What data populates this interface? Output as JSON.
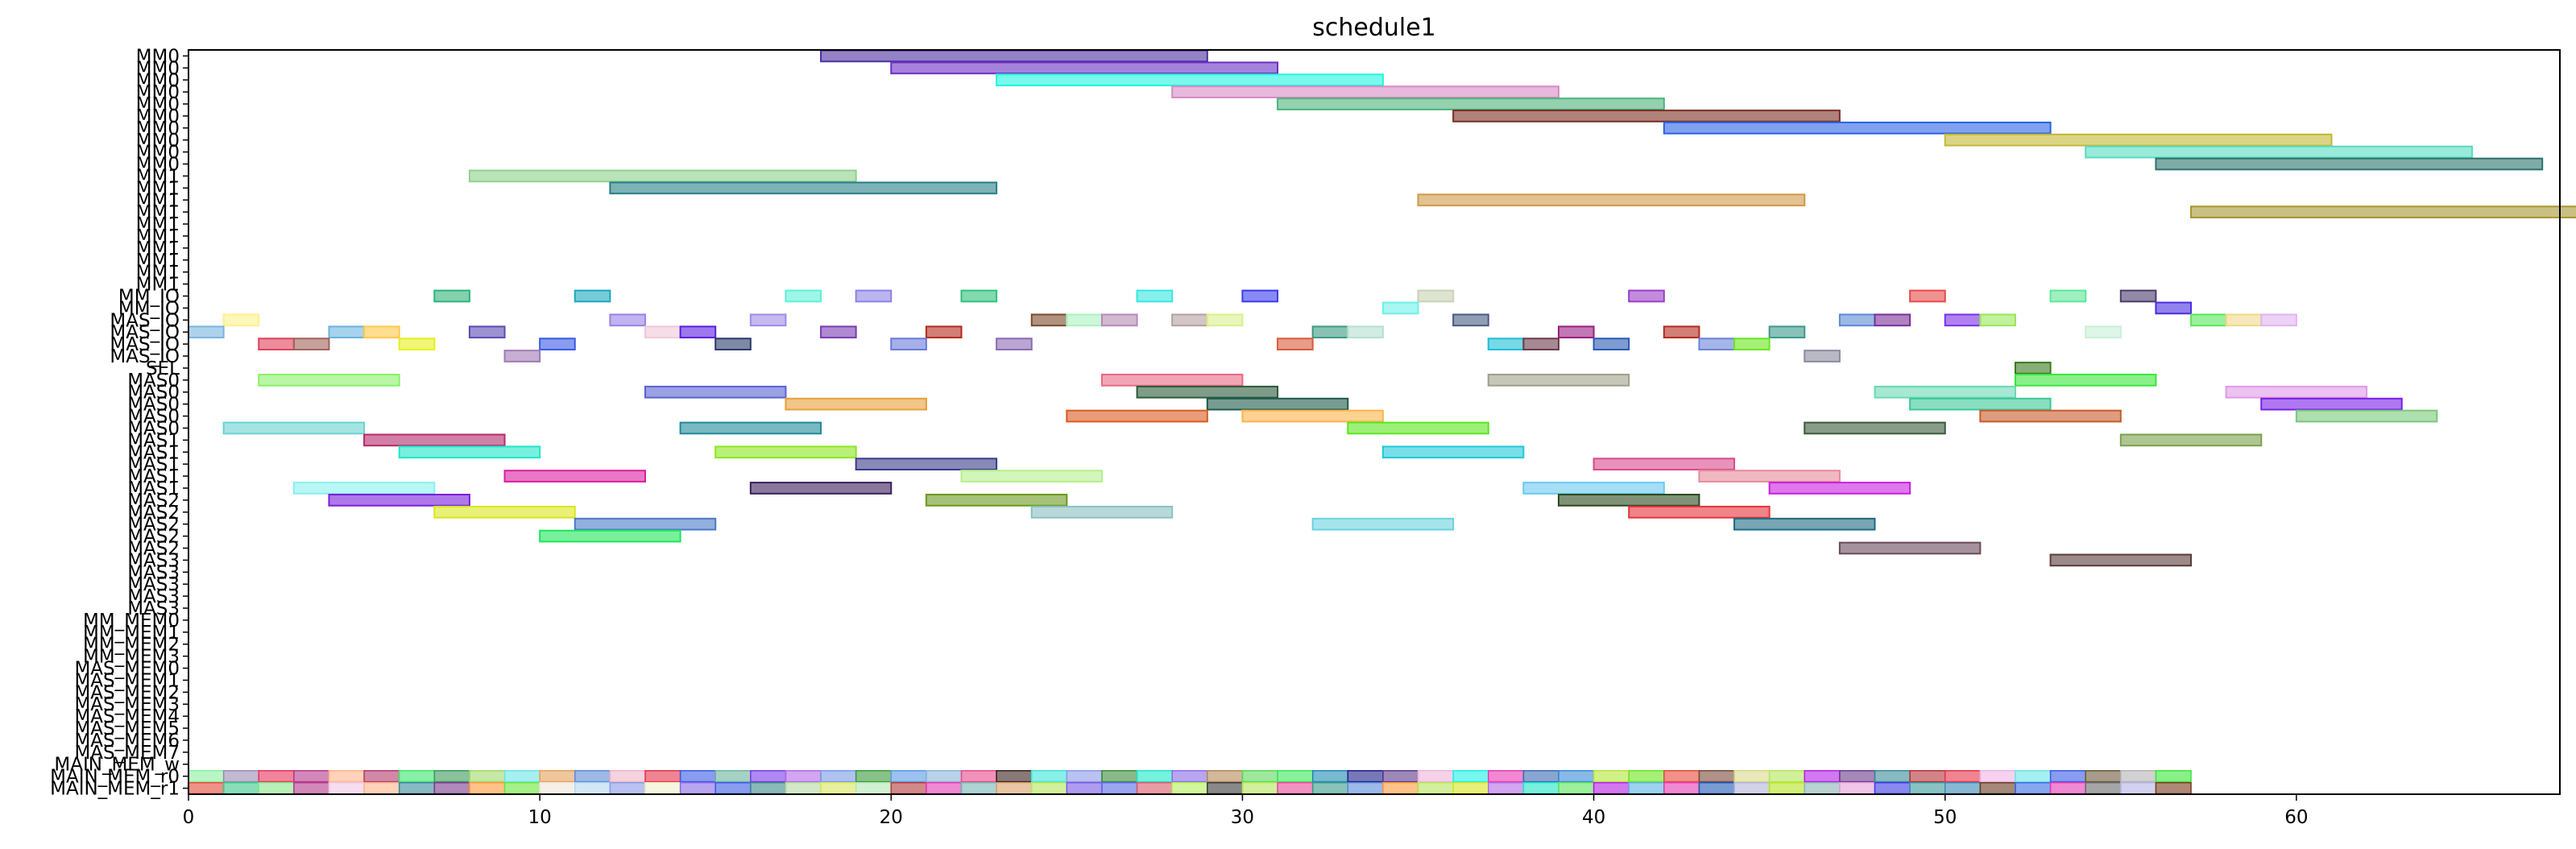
{
  "chart_data": {
    "type": "gantt",
    "title": "schedule1",
    "xlabel": "",
    "ylabel": "",
    "xlim": [
      0,
      67.5
    ],
    "x_ticks": [
      0,
      10,
      20,
      30,
      40,
      50,
      60
    ],
    "grid": false,
    "legend": "none",
    "rows": [
      "MM0",
      "MM0",
      "MM0",
      "MM0",
      "MM0",
      "MM0",
      "MM0",
      "MM0",
      "MM0",
      "MM0",
      "MM1",
      "MM1",
      "MM1",
      "MM1",
      "MM1",
      "MM1",
      "MM1",
      "MM1",
      "MM1",
      "MM1",
      "MM_IO",
      "MM_IO",
      "MAS_IO",
      "MAS_IO",
      "MAS_IO",
      "MAS_IO",
      "SEL",
      "MAS0",
      "MAS0",
      "MAS0",
      "MAS0",
      "MAS0",
      "MAS1",
      "MAS1",
      "MAS1",
      "MAS1",
      "MAS1",
      "MAS2",
      "MAS2",
      "MAS2",
      "MAS2",
      "MAS2",
      "MAS3",
      "MAS3",
      "MAS3",
      "MAS3",
      "MAS3",
      "MM_MEM0",
      "MM_MEM1",
      "MM_MEM2",
      "MM_MEM3",
      "MAS_MEM0",
      "MAS_MEM1",
      "MAS_MEM2",
      "MAS_MEM3",
      "MAS_MEM4",
      "MAS_MEM5",
      "MAS_MEM6",
      "MAS_MEM7",
      "MAIN_MEM_w",
      "MAIN_MEM_r0",
      "MAIN_MEM_r1"
    ],
    "tasks": [
      {
        "row": 0,
        "start": 18,
        "end": 29,
        "color": "#4b2fa0"
      },
      {
        "row": 1,
        "start": 20,
        "end": 31,
        "color": "#6a2fc4"
      },
      {
        "row": 2,
        "start": 23,
        "end": 34,
        "color": "#1ff5e0"
      },
      {
        "row": 3,
        "start": 28,
        "end": 39,
        "color": "#d78ac4"
      },
      {
        "row": 4,
        "start": 31,
        "end": 42,
        "color": "#4cb37a"
      },
      {
        "row": 5,
        "start": 36,
        "end": 47,
        "color": "#7a2e22"
      },
      {
        "row": 6,
        "start": 42,
        "end": 53,
        "color": "#2b62e3"
      },
      {
        "row": 7,
        "start": 50,
        "end": 61,
        "color": "#c4b833"
      },
      {
        "row": 8,
        "start": 54,
        "end": 65,
        "color": "#56dcc0"
      },
      {
        "row": 9,
        "start": 56,
        "end": 67,
        "color": "#2a736a"
      },
      {
        "row": 10,
        "start": 8,
        "end": 19,
        "color": "#8ed18a"
      },
      {
        "row": 11,
        "start": 12,
        "end": 23,
        "color": "#277e86"
      },
      {
        "row": 12,
        "start": 35,
        "end": 46,
        "color": "#cf9a48"
      },
      {
        "row": 13,
        "start": 57,
        "end": 68,
        "color": "#a89630"
      },
      {
        "row": 20,
        "start": 7,
        "end": 8,
        "color": "#2fb27a"
      },
      {
        "row": 20,
        "start": 11,
        "end": 12,
        "color": "#1aa8c0"
      },
      {
        "row": 20,
        "start": 17,
        "end": 18,
        "color": "#5ef0d8"
      },
      {
        "row": 20,
        "start": 19,
        "end": 20,
        "color": "#8c82e6"
      },
      {
        "row": 20,
        "start": 22,
        "end": 23,
        "color": "#2fc27a"
      },
      {
        "row": 20,
        "start": 27,
        "end": 28,
        "color": "#37e6e0"
      },
      {
        "row": 20,
        "start": 30,
        "end": 31,
        "color": "#3a3af0"
      },
      {
        "row": 20,
        "start": 35,
        "end": 36,
        "color": "#c8d2b4"
      },
      {
        "row": 20,
        "start": 41,
        "end": 42,
        "color": "#9a3ec8"
      },
      {
        "row": 20,
        "start": 49,
        "end": 50,
        "color": "#e84a4a"
      },
      {
        "row": 20,
        "start": 53,
        "end": 54,
        "color": "#5ee69a"
      },
      {
        "row": 20,
        "start": 55,
        "end": 56,
        "color": "#4a3a6a"
      },
      {
        "row": 21,
        "start": 34,
        "end": 35,
        "color": "#6ef0e8"
      },
      {
        "row": 21,
        "start": 56,
        "end": 57,
        "color": "#4a2ee0"
      },
      {
        "row": 22,
        "start": 1,
        "end": 2,
        "color": "#fff08a"
      },
      {
        "row": 22,
        "start": 12,
        "end": 13,
        "color": "#9a82e6"
      },
      {
        "row": 22,
        "start": 16,
        "end": 17,
        "color": "#a08ae6"
      },
      {
        "row": 22,
        "start": 24,
        "end": 25,
        "color": "#7a4a2a"
      },
      {
        "row": 22,
        "start": 25,
        "end": 26,
        "color": "#aef0c0"
      },
      {
        "row": 22,
        "start": 26,
        "end": 27,
        "color": "#b48ab4"
      },
      {
        "row": 22,
        "start": 28,
        "end": 29,
        "color": "#b4a0a0"
      },
      {
        "row": 22,
        "start": 29,
        "end": 30,
        "color": "#d8f08a"
      },
      {
        "row": 22,
        "start": 36,
        "end": 37,
        "color": "#4a5a82"
      },
      {
        "row": 22,
        "start": 47,
        "end": 48,
        "color": "#5a8ad2"
      },
      {
        "row": 22,
        "start": 48,
        "end": 49,
        "color": "#7a2e9a"
      },
      {
        "row": 22,
        "start": 50,
        "end": 51,
        "color": "#7a2ee6"
      },
      {
        "row": 22,
        "start": 51,
        "end": 52,
        "color": "#9ae65a"
      },
      {
        "row": 22,
        "start": 57,
        "end": 58,
        "color": "#5ae65a"
      },
      {
        "row": 22,
        "start": 58,
        "end": 59,
        "color": "#f0d88a"
      },
      {
        "row": 22,
        "start": 59,
        "end": 60,
        "color": "#e0b4f0"
      },
      {
        "row": 23,
        "start": 0,
        "end": 1,
        "color": "#7ab4e0"
      },
      {
        "row": 23,
        "start": 4,
        "end": 5,
        "color": "#6ab4e0"
      },
      {
        "row": 23,
        "start": 5,
        "end": 6,
        "color": "#ffc84a"
      },
      {
        "row": 23,
        "start": 8,
        "end": 9,
        "color": "#5a4ab4"
      },
      {
        "row": 23,
        "start": 13,
        "end": 14,
        "color": "#f0c8d8"
      },
      {
        "row": 23,
        "start": 14,
        "end": 15,
        "color": "#5a1ee0"
      },
      {
        "row": 23,
        "start": 18,
        "end": 19,
        "color": "#7a3ab4"
      },
      {
        "row": 23,
        "start": 21,
        "end": 22,
        "color": "#b42a1e"
      },
      {
        "row": 23,
        "start": 32,
        "end": 33,
        "color": "#3a9a82"
      },
      {
        "row": 23,
        "start": 33,
        "end": 34,
        "color": "#b4e0d0"
      },
      {
        "row": 23,
        "start": 39,
        "end": 40,
        "color": "#9a1e82"
      },
      {
        "row": 23,
        "start": 42,
        "end": 43,
        "color": "#b42a1e"
      },
      {
        "row": 23,
        "start": 45,
        "end": 46,
        "color": "#3a9a8a"
      },
      {
        "row": 23,
        "start": 54,
        "end": 55,
        "color": "#c8f0d8"
      },
      {
        "row": 24,
        "start": 2,
        "end": 3,
        "color": "#e0405a"
      },
      {
        "row": 24,
        "start": 3,
        "end": 4,
        "color": "#a0625a"
      },
      {
        "row": 24,
        "start": 6,
        "end": 7,
        "color": "#e6f01e"
      },
      {
        "row": 24,
        "start": 10,
        "end": 11,
        "color": "#3a5ae6"
      },
      {
        "row": 24,
        "start": 15,
        "end": 16,
        "color": "#2a3a6a"
      },
      {
        "row": 24,
        "start": 20,
        "end": 21,
        "color": "#6a7ad8"
      },
      {
        "row": 24,
        "start": 23,
        "end": 24,
        "color": "#8a6ab4"
      },
      {
        "row": 24,
        "start": 31,
        "end": 32,
        "color": "#d85a3a"
      },
      {
        "row": 24,
        "start": 37,
        "end": 38,
        "color": "#1ebed8"
      },
      {
        "row": 24,
        "start": 38,
        "end": 39,
        "color": "#6a3a4a"
      },
      {
        "row": 24,
        "start": 40,
        "end": 41,
        "color": "#2a5ab4"
      },
      {
        "row": 24,
        "start": 43,
        "end": 44,
        "color": "#6a82d8"
      },
      {
        "row": 24,
        "start": 44,
        "end": 45,
        "color": "#6ae61e"
      },
      {
        "row": 25,
        "start": 9,
        "end": 10,
        "color": "#a07ab4"
      },
      {
        "row": 25,
        "start": 46,
        "end": 47,
        "color": "#8a8aa0"
      },
      {
        "row": 26,
        "start": 52,
        "end": 53,
        "color": "#3a7a1e"
      },
      {
        "row": 27,
        "start": 2,
        "end": 6,
        "color": "#8af06a"
      },
      {
        "row": 27,
        "start": 26,
        "end": 30,
        "color": "#e66a82"
      },
      {
        "row": 27,
        "start": 37,
        "end": 41,
        "color": "#a0a08a"
      },
      {
        "row": 27,
        "start": 52,
        "end": 56,
        "color": "#3ae63a"
      },
      {
        "row": 28,
        "start": 13,
        "end": 17,
        "color": "#5a62d2"
      },
      {
        "row": 28,
        "start": 27,
        "end": 31,
        "color": "#2a5a3a"
      },
      {
        "row": 28,
        "start": 48,
        "end": 52,
        "color": "#6ad8b4"
      },
      {
        "row": 28,
        "start": 58,
        "end": 62,
        "color": "#e09ae6"
      },
      {
        "row": 29,
        "start": 17,
        "end": 21,
        "color": "#e6a03a"
      },
      {
        "row": 29,
        "start": 29,
        "end": 33,
        "color": "#1e5a4a"
      },
      {
        "row": 29,
        "start": 49,
        "end": 53,
        "color": "#3ac89a"
      },
      {
        "row": 29,
        "start": 59,
        "end": 63,
        "color": "#7a1ee6"
      },
      {
        "row": 30,
        "start": 25,
        "end": 29,
        "color": "#d85a1e"
      },
      {
        "row": 30,
        "start": 30,
        "end": 34,
        "color": "#ffb44a"
      },
      {
        "row": 30,
        "start": 51,
        "end": 55,
        "color": "#c85a2a"
      },
      {
        "row": 30,
        "start": 60,
        "end": 64,
        "color": "#7ac87a"
      },
      {
        "row": 31,
        "start": 1,
        "end": 5,
        "color": "#6ad2d2"
      },
      {
        "row": 31,
        "start": 14,
        "end": 18,
        "color": "#1e8a9a"
      },
      {
        "row": 31,
        "start": 33,
        "end": 37,
        "color": "#5ae61e"
      },
      {
        "row": 31,
        "start": 46,
        "end": 50,
        "color": "#3a5a3a"
      },
      {
        "row": 32,
        "start": 5,
        "end": 9,
        "color": "#b42a6a"
      },
      {
        "row": 32,
        "start": 55,
        "end": 59,
        "color": "#7aa04a"
      },
      {
        "row": 33,
        "start": 6,
        "end": 10,
        "color": "#1ee6c8"
      },
      {
        "row": 33,
        "start": 15,
        "end": 19,
        "color": "#8ae61e"
      },
      {
        "row": 33,
        "start": 34,
        "end": 38,
        "color": "#1ec8d8"
      },
      {
        "row": 34,
        "start": 19,
        "end": 23,
        "color": "#3a3a8a"
      },
      {
        "row": 34,
        "start": 40,
        "end": 44,
        "color": "#d84a8a"
      },
      {
        "row": 35,
        "start": 9,
        "end": 13,
        "color": "#d81ea0"
      },
      {
        "row": 35,
        "start": 22,
        "end": 26,
        "color": "#b4f08a"
      },
      {
        "row": 35,
        "start": 43,
        "end": 47,
        "color": "#e68a9a"
      },
      {
        "row": 36,
        "start": 3,
        "end": 7,
        "color": "#8af0f0"
      },
      {
        "row": 36,
        "start": 16,
        "end": 20,
        "color": "#3a1e5a"
      },
      {
        "row": 36,
        "start": 38,
        "end": 42,
        "color": "#6ac8f0"
      },
      {
        "row": 36,
        "start": 45,
        "end": 49,
        "color": "#c81ee0"
      },
      {
        "row": 37,
        "start": 4,
        "end": 8,
        "color": "#7a1ed8"
      },
      {
        "row": 37,
        "start": 21,
        "end": 25,
        "color": "#6a9a1e"
      },
      {
        "row": 37,
        "start": 39,
        "end": 43,
        "color": "#2a4a1e"
      },
      {
        "row": 38,
        "start": 7,
        "end": 11,
        "color": "#d8e61e"
      },
      {
        "row": 38,
        "start": 24,
        "end": 28,
        "color": "#8ac0c0"
      },
      {
        "row": 38,
        "start": 41,
        "end": 45,
        "color": "#e6323a"
      },
      {
        "row": 39,
        "start": 11,
        "end": 15,
        "color": "#4a7ac8"
      },
      {
        "row": 39,
        "start": 32,
        "end": 36,
        "color": "#6ad2e0"
      },
      {
        "row": 39,
        "start": 44,
        "end": 48,
        "color": "#1e6a82"
      },
      {
        "row": 40,
        "start": 10,
        "end": 14,
        "color": "#1ee65a"
      },
      {
        "row": 41,
        "start": 47,
        "end": 51,
        "color": "#6a4a5a"
      },
      {
        "row": 42,
        "start": 53,
        "end": 57,
        "color": "#5a3a3a"
      }
    ],
    "main_mem_r0_colors": [
      "#8af0a0",
      "#9a8ab4",
      "#e6325a",
      "#b43a8a",
      "#ffb48a",
      "#b43a6a",
      "#3ae66a",
      "#3a9a5a",
      "#a0d86a",
      "#6ae6e6",
      "#e6a05a",
      "#5a8ad8",
      "#f0b4c8",
      "#e6324a",
      "#3a5ae6",
      "#6ab4a0",
      "#7a3ae6",
      "#b46ae6",
      "#7a9ae6",
      "#3a9a3a",
      "#5a9ae6",
      "#8ab4d8",
      "#e64a8a",
      "#3a1e1e",
      "#3ae6d8",
      "#8a9ae6",
      "#3a8a3a",
      "#1ee6c8",
      "#8a6ae6",
      "#b48a5a",
      "#5ad85a",
      "#3ae65a",
      "#1e8ab4",
      "#1e1e8a",
      "#5a3a8a",
      "#f0b4d8",
      "#1ef0e6",
      "#e63ab4",
      "#3a6ab4",
      "#3a8ad8",
      "#b4e63a",
      "#6ae61e",
      "#e64a3a",
      "#7a4a3a",
      "#d8d88a",
      "#b4e65a",
      "#b41ee6",
      "#6a3a8a",
      "#3a8a9a",
      "#b4323a",
      "#e6324a",
      "#f0b4e6",
      "#6ae6e6",
      "#3a5ae6",
      "#6a5a3a",
      "#b4b4b4",
      "#3ae63a"
    ],
    "main_mem_r1_colors": [
      "#e64a3a",
      "#3ac88a",
      "#8ae68a",
      "#b43a8a",
      "#f0c8e6",
      "#ffb48a",
      "#3a8a9a",
      "#7a3a8a",
      "#ff9a3a",
      "#6ae63a",
      "#f0e6d8",
      "#b4d8f0",
      "#8a9ae6",
      "#f0f0c8",
      "#8a6ae6",
      "#3a5ae6",
      "#3a8a8a",
      "#b4d8a0",
      "#d8e65a",
      "#b4e6b4",
      "#b43a3a",
      "#e63ab4",
      "#7ab4b4",
      "#d8a06a",
      "#b4e65a",
      "#7a5ae6",
      "#5a6ae6",
      "#d85a6a",
      "#b4f05a",
      "#3a3a3a",
      "#b4e65a",
      "#e64a9a",
      "#3a9a8a",
      "#5a8ad8",
      "#ff9a3a",
      "#b4e65a",
      "#d8e61e",
      "#b46ae6",
      "#1ee6c8",
      "#5ae65a",
      "#b41ee6",
      "#5ab4e6",
      "#e63ab4",
      "#1e5ab4",
      "#b4b4d8",
      "#b4e61e",
      "#8ab4b4",
      "#e6a0d8",
      "#3a3ae6",
      "#3a9a9a",
      "#3a8ab4",
      "#6a3a1e",
      "#3a6ae6",
      "#e63ab4",
      "#6a6a6a",
      "#b4b4e6",
      "#7a3a1e"
    ]
  }
}
